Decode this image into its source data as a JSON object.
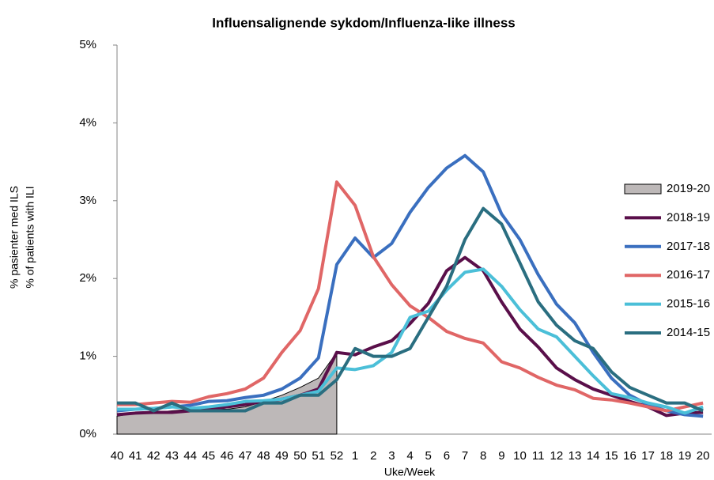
{
  "chart_data": {
    "type": "line",
    "title": "Influensalignende sykdom/Influenza-like illness",
    "x_label": "Uke/Week",
    "y_label": [
      "% pasienter med ILS",
      "% of patients with ILI"
    ],
    "categories": [
      "40",
      "41",
      "42",
      "43",
      "44",
      "45",
      "46",
      "47",
      "48",
      "49",
      "50",
      "51",
      "52",
      "1",
      "2",
      "3",
      "4",
      "5",
      "6",
      "7",
      "8",
      "9",
      "10",
      "11",
      "12",
      "13",
      "14",
      "15",
      "16",
      "17",
      "18",
      "19",
      "20"
    ],
    "ylim": [
      0,
      5
    ],
    "yticks": [
      {
        "value": 0,
        "label": "0%"
      },
      {
        "value": 1,
        "label": "1%"
      },
      {
        "value": 2,
        "label": "2%"
      },
      {
        "value": 3,
        "label": "3%"
      },
      {
        "value": 4,
        "label": "4%"
      },
      {
        "value": 5,
        "label": "5%"
      }
    ],
    "grid": false,
    "legend": "right",
    "series": [
      {
        "name": "2019-20",
        "kind": "area",
        "color": "#bdb8b8",
        "values": [
          0.23,
          0.27,
          0.28,
          0.3,
          0.32,
          0.32,
          0.32,
          0.35,
          0.42,
          0.5,
          0.6,
          0.72,
          1.05,
          null,
          null,
          null,
          null,
          null,
          null,
          null,
          null,
          null,
          null,
          null,
          null,
          null,
          null,
          null,
          null,
          null,
          null,
          null,
          null
        ]
      },
      {
        "name": "2018-19",
        "kind": "line",
        "color": "#5a0f4a",
        "values": [
          0.25,
          0.27,
          0.28,
          0.28,
          0.3,
          0.32,
          0.35,
          0.38,
          0.42,
          0.45,
          0.5,
          0.58,
          1.05,
          1.02,
          1.12,
          1.2,
          1.42,
          1.68,
          2.1,
          2.27,
          2.1,
          1.7,
          1.35,
          1.12,
          0.85,
          0.7,
          0.58,
          0.5,
          0.42,
          0.35,
          0.24,
          0.27,
          0.28
        ]
      },
      {
        "name": "2017-18",
        "kind": "line",
        "color": "#3a6fbf",
        "values": [
          0.3,
          0.32,
          0.33,
          0.35,
          0.37,
          0.42,
          0.43,
          0.47,
          0.5,
          0.58,
          0.72,
          0.98,
          2.18,
          2.52,
          2.27,
          2.45,
          2.85,
          3.17,
          3.42,
          3.58,
          3.37,
          2.83,
          2.5,
          2.05,
          1.67,
          1.43,
          1.05,
          0.72,
          0.5,
          0.38,
          0.3,
          0.25,
          0.23
        ]
      },
      {
        "name": "2016-17",
        "kind": "line",
        "color": "#e06666",
        "values": [
          0.38,
          0.38,
          0.4,
          0.42,
          0.41,
          0.48,
          0.52,
          0.58,
          0.72,
          1.05,
          1.33,
          1.87,
          3.24,
          2.94,
          2.28,
          1.92,
          1.65,
          1.5,
          1.32,
          1.23,
          1.17,
          0.93,
          0.85,
          0.73,
          0.63,
          0.57,
          0.46,
          0.44,
          0.4,
          0.35,
          0.3,
          0.35,
          0.4
        ]
      },
      {
        "name": "2015-16",
        "kind": "line",
        "color": "#4bbfd8",
        "values": [
          0.32,
          0.32,
          0.33,
          0.35,
          0.33,
          0.35,
          0.38,
          0.42,
          0.43,
          0.45,
          0.5,
          0.55,
          0.85,
          0.83,
          0.88,
          1.05,
          1.5,
          1.58,
          1.85,
          2.08,
          2.12,
          1.9,
          1.6,
          1.35,
          1.25,
          1.0,
          0.75,
          0.52,
          0.47,
          0.4,
          0.35,
          0.27,
          0.35
        ]
      },
      {
        "name": "2014-15",
        "kind": "line",
        "color": "#2a6e80",
        "values": [
          0.4,
          0.4,
          0.3,
          0.4,
          0.3,
          0.3,
          0.3,
          0.3,
          0.4,
          0.4,
          0.5,
          0.5,
          0.7,
          1.1,
          1.0,
          1.0,
          1.1,
          1.5,
          1.9,
          2.5,
          2.9,
          2.7,
          2.2,
          1.7,
          1.4,
          1.2,
          1.1,
          0.8,
          0.6,
          0.5,
          0.4,
          0.4,
          0.3
        ]
      }
    ]
  }
}
